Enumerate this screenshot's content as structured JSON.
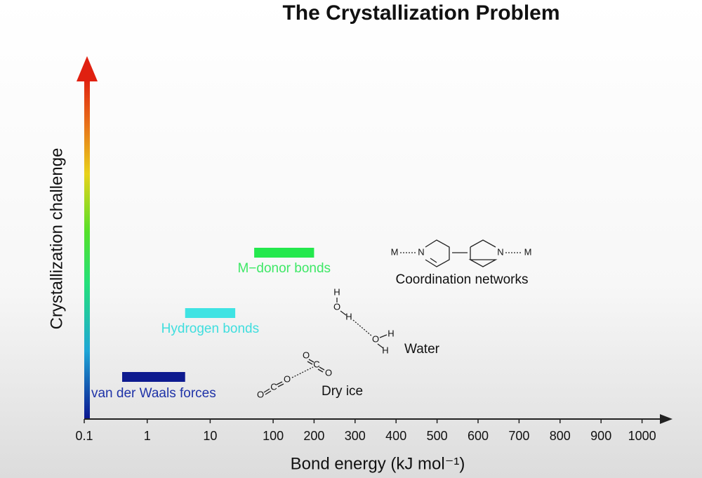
{
  "chart_data": {
    "type": "range-bar",
    "title": "The Crystallization Problem",
    "x_label": "Bond energy (kJ mol⁻¹)",
    "y_label": "Crystallization challenge",
    "xlim": [
      0.1,
      1000
    ],
    "xticks": [
      0.1,
      1,
      10,
      100,
      200,
      300,
      400,
      500,
      600,
      700,
      800,
      900,
      1000
    ],
    "series": [
      {
        "name": "van der Waals forces",
        "color": "#0d1a8f",
        "label_color": "#1f33a8",
        "range": [
          0.4,
          4
        ]
      },
      {
        "name": "Hydrogen bonds",
        "color": "#3fe3e3",
        "label_color": "#3fdede",
        "range": [
          4,
          25
        ]
      },
      {
        "name": "M−donor bonds",
        "color": "#24e84d",
        "label_color": "#3ee866",
        "range": [
          50,
          200
        ]
      }
    ],
    "annotations": {
      "coordination": {
        "label": "Coordination networks",
        "atoms": [
          "M",
          "N",
          "N",
          "M"
        ]
      },
      "water": {
        "label": "Water",
        "atoms": [
          "H",
          "O",
          "H",
          "O",
          "H",
          "H"
        ]
      },
      "dry_ice": {
        "label": "Dry ice",
        "atoms": [
          "O",
          "C",
          "O",
          "O",
          "C",
          "O"
        ]
      }
    }
  }
}
